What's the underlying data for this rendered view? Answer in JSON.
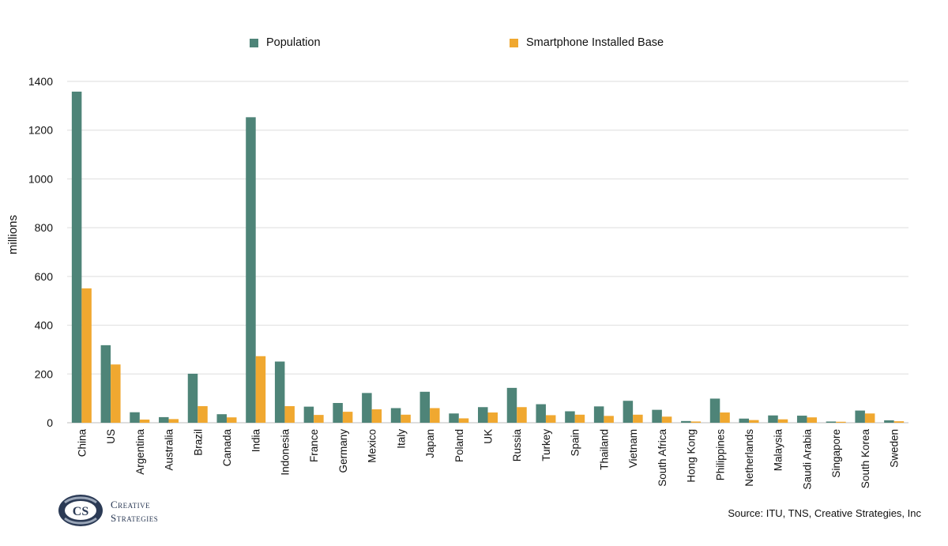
{
  "chart_data": {
    "type": "bar",
    "title": "",
    "xlabel": "",
    "ylabel": "millions",
    "ylim": [
      0,
      1400
    ],
    "yticks": [
      0,
      200,
      400,
      600,
      800,
      1000,
      1200,
      1400
    ],
    "grid": true,
    "legend_position": "top",
    "categories": [
      "China",
      "US",
      "Argentina",
      "Australia",
      "Brazil",
      "Canada",
      "India",
      "Indonesia",
      "France",
      "Germany",
      "Mexico",
      "Italy",
      "Japan",
      "Poland",
      "UK",
      "Russia",
      "Turkey",
      "Spain",
      "Thailand",
      "Vietnam",
      "South Africa",
      "Hong Kong",
      "Philippines",
      "Netherlands",
      "Malaysia",
      "Saudi Arabia",
      "Singapore",
      "South Korea",
      "Sweden"
    ],
    "series": [
      {
        "name": "Population",
        "color": "#4e8478",
        "values": [
          1358,
          318,
          43,
          23,
          201,
          35,
          1253,
          251,
          66,
          81,
          122,
          60,
          127,
          38,
          64,
          143,
          76,
          47,
          67,
          90,
          53,
          7,
          99,
          17,
          30,
          29,
          5,
          50,
          10
        ]
      },
      {
        "name": "Smartphone Installed Base",
        "color": "#f0a830",
        "values": [
          551,
          239,
          13,
          15,
          68,
          22,
          273,
          68,
          32,
          45,
          55,
          33,
          60,
          18,
          42,
          64,
          31,
          33,
          28,
          33,
          25,
          5,
          42,
          11,
          14,
          22,
          4,
          38,
          6
        ]
      }
    ]
  },
  "legend": {
    "population_label": "Population",
    "smartphone_label": "Smartphone Installed Base"
  },
  "source": "Source: ITU, TNS, Creative Strategies, Inc",
  "logo": {
    "mark": "CS",
    "line1": "Creative",
    "line2": "Strategies"
  }
}
